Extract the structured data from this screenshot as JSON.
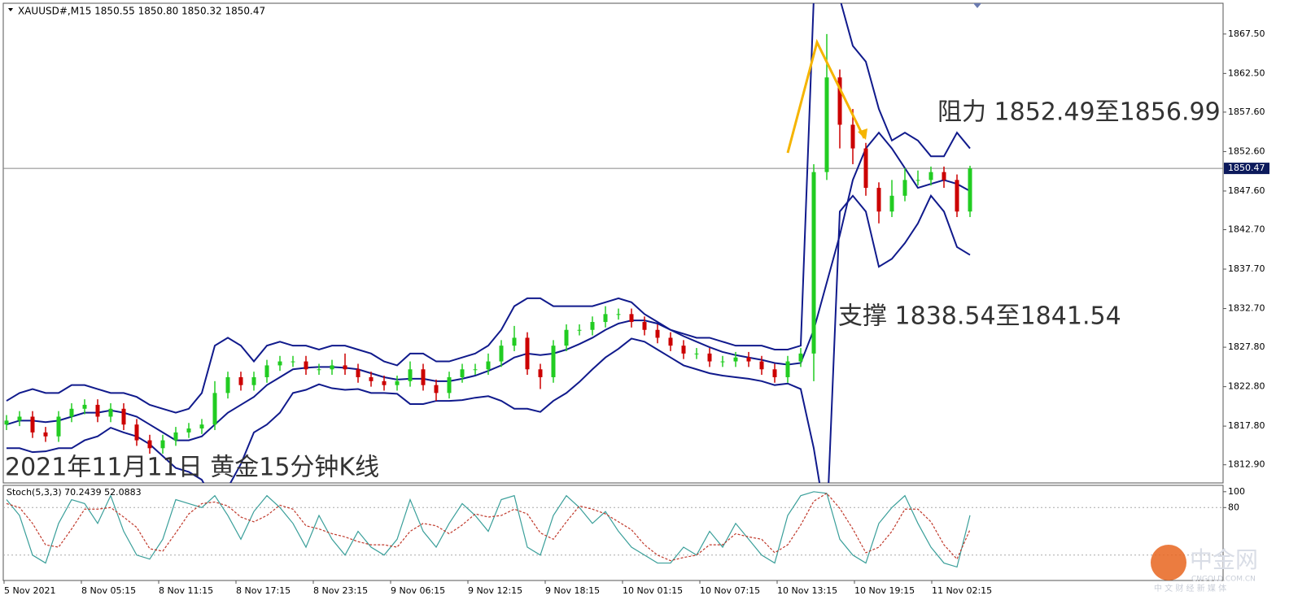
{
  "chart_data": [
    {
      "type": "candlestick",
      "title": "XAUUSD#,M15  1850.55 1850.80 1850.32 1850.47",
      "annotations": [
        "阻力 1852.49至1856.99",
        "支撑 1838.54至1841.54",
        "2021年11月11日 黄金15分钟K线"
      ],
      "x_labels": [
        "5 Nov 2021",
        "8 Nov 05:15",
        "8 Nov 11:15",
        "8 Nov 17:15",
        "8 Nov 23:15",
        "9 Nov 06:15",
        "9 Nov 12:15",
        "9 Nov 18:15",
        "10 Nov 01:15",
        "10 Nov 07:15",
        "10 Nov 13:15",
        "10 Nov 19:15",
        "11 Nov 02:15"
      ],
      "open": [
        1818,
        1818.5,
        1819,
        1817,
        1816.5,
        1819,
        1820,
        1820.5,
        1819,
        1820,
        1818,
        1816,
        1815,
        1816,
        1817,
        1817.5,
        1818,
        1822,
        1824,
        1823,
        1824,
        1825.5,
        1826,
        1826,
        1825,
        1825,
        1825.5,
        1825,
        1824,
        1823.5,
        1823,
        1823.5,
        1825,
        1823,
        1822,
        1824,
        1825,
        1825,
        1826,
        1828,
        1829,
        1825,
        1824,
        1828,
        1830,
        1830,
        1831,
        1832,
        1832,
        1831,
        1830,
        1829,
        1828,
        1827,
        1827,
        1826,
        1826,
        1826.5,
        1826,
        1825,
        1824,
        1826,
        1827,
        1850,
        1862,
        1856,
        1853,
        1848,
        1845,
        1847,
        1849,
        1849,
        1850,
        1849,
        1845
      ],
      "high": [
        1819.2,
        1819.7,
        1819.7,
        1817.7,
        1819.7,
        1820.7,
        1821.2,
        1821.2,
        1820.7,
        1820.7,
        1818.7,
        1816.7,
        1816.7,
        1817.7,
        1818.2,
        1818.7,
        1823.5,
        1824.7,
        1824.7,
        1824.7,
        1826.2,
        1826.7,
        1826.7,
        1826.7,
        1825.7,
        1826.2,
        1827,
        1825.7,
        1824.7,
        1824.2,
        1824.2,
        1826,
        1825.7,
        1823.7,
        1824.7,
        1825.7,
        1825.7,
        1827,
        1828.7,
        1830.5,
        1829.7,
        1825.7,
        1828.7,
        1830.7,
        1830.7,
        1831.7,
        1833,
        1832.7,
        1832.7,
        1831.7,
        1830.7,
        1829.7,
        1828.7,
        1827.7,
        1827.7,
        1826.7,
        1827.2,
        1827.2,
        1826.7,
        1825.7,
        1826.7,
        1827.7,
        1851,
        1867.5,
        1863,
        1858,
        1853.7,
        1848.7,
        1849,
        1850.5,
        1850.2,
        1850.7,
        1850.7,
        1849.7,
        1850.8
      ],
      "low": [
        1817.3,
        1817.8,
        1816.3,
        1815.8,
        1815.8,
        1818.3,
        1819.3,
        1818.3,
        1818.3,
        1817.3,
        1815.3,
        1814.3,
        1814.3,
        1815.3,
        1816.3,
        1816.8,
        1817.3,
        1821.3,
        1822.3,
        1822.3,
        1823.3,
        1824.8,
        1825.3,
        1824.3,
        1824.3,
        1824.3,
        1824.3,
        1823.3,
        1822.8,
        1822.3,
        1822.3,
        1822.8,
        1822.3,
        1821,
        1821.3,
        1823.3,
        1824.3,
        1824.3,
        1825.3,
        1827.3,
        1824.3,
        1822.5,
        1823.3,
        1827.3,
        1829.3,
        1829.3,
        1830.3,
        1831.3,
        1830.3,
        1829.3,
        1828.3,
        1827.3,
        1826.3,
        1826.3,
        1825.3,
        1825.3,
        1825.3,
        1825.3,
        1824.3,
        1823.3,
        1823.3,
        1825.3,
        1823.5,
        1849,
        1853,
        1851,
        1847,
        1843.5,
        1844.3,
        1846.3,
        1848.3,
        1848.3,
        1848,
        1844.3,
        1844.3
      ],
      "close": [
        1818.5,
        1819,
        1817,
        1816.5,
        1819,
        1820,
        1820.5,
        1819,
        1820,
        1818,
        1816,
        1815,
        1816,
        1817,
        1817.5,
        1818,
        1822,
        1824,
        1823,
        1824,
        1825.5,
        1826,
        1826,
        1825,
        1825,
        1825.5,
        1825,
        1824,
        1823.5,
        1823,
        1823.5,
        1825,
        1823,
        1822,
        1824,
        1825,
        1825,
        1826,
        1828,
        1829,
        1825,
        1824,
        1828,
        1830,
        1830,
        1831,
        1832,
        1832,
        1831,
        1830,
        1829,
        1828,
        1827,
        1827,
        1826,
        1826,
        1826.5,
        1826,
        1825,
        1824,
        1826,
        1827,
        1850,
        1862,
        1856,
        1853,
        1848,
        1845,
        1847,
        1849,
        1849,
        1850,
        1849,
        1845,
        1850.47
      ],
      "up_color": "#22cc22",
      "down_color": "#cc0000",
      "bands": {
        "color": "#101a8c",
        "upper": [
          1821,
          1822,
          1822.5,
          1822,
          1822,
          1823,
          1823,
          1822.5,
          1822,
          1822,
          1821.5,
          1820.5,
          1820,
          1819.5,
          1820,
          1822,
          1828,
          1829,
          1828,
          1826,
          1828,
          1828.5,
          1828,
          1828,
          1827.5,
          1828,
          1828,
          1827.5,
          1827,
          1826,
          1825.5,
          1827,
          1827,
          1826,
          1826,
          1826.5,
          1827,
          1828,
          1830,
          1833,
          1834,
          1834,
          1833,
          1833,
          1833,
          1833,
          1833.5,
          1834,
          1833.5,
          1832,
          1831,
          1830,
          1829.5,
          1829,
          1829,
          1828.5,
          1828,
          1828,
          1828,
          1827.5,
          1827.5,
          1828,
          1872,
          1872,
          1872,
          1866,
          1864,
          1858,
          1854,
          1855,
          1854,
          1852,
          1852,
          1855,
          1853
        ],
        "middle": [
          1818,
          1818.5,
          1818.5,
          1818.3,
          1818.5,
          1819,
          1819.5,
          1819.5,
          1819.8,
          1819.5,
          1819,
          1818,
          1817,
          1816,
          1816,
          1816.5,
          1818,
          1819.5,
          1820.5,
          1821.5,
          1823,
          1824,
          1825,
          1825.2,
          1825.3,
          1825.3,
          1825.2,
          1825,
          1824.5,
          1824,
          1823.7,
          1823.8,
          1823.8,
          1823.5,
          1823.5,
          1823.8,
          1824.2,
          1824.8,
          1825.5,
          1826.5,
          1827,
          1826.8,
          1827,
          1827.5,
          1828.2,
          1829,
          1830,
          1830.8,
          1831.2,
          1831.2,
          1830.8,
          1830,
          1829.2,
          1828.5,
          1827.8,
          1827.2,
          1826.8,
          1826.5,
          1826.2,
          1825.8,
          1825.6,
          1825.8,
          1830,
          1836,
          1842,
          1849,
          1853,
          1855,
          1853,
          1850.5,
          1848,
          1848.5,
          1849,
          1848.5,
          1847.6
        ],
        "lower": [
          1815,
          1815,
          1814.5,
          1814.6,
          1815,
          1815,
          1816,
          1816.5,
          1817.6,
          1817,
          1816.5,
          1815.5,
          1814,
          1812.5,
          1812,
          1811,
          1808,
          1810,
          1813,
          1817,
          1818,
          1819.5,
          1822,
          1822.4,
          1823.1,
          1822.6,
          1822.4,
          1822.5,
          1822,
          1822,
          1821.9,
          1820.6,
          1820.6,
          1821,
          1821,
          1821.1,
          1821.4,
          1821.6,
          1821,
          1820,
          1820,
          1819.6,
          1821,
          1822,
          1823.4,
          1825,
          1826.5,
          1827.6,
          1828.9,
          1828.5,
          1827.5,
          1826.5,
          1825.5,
          1825,
          1824.5,
          1824.2,
          1824,
          1823.8,
          1823.5,
          1823,
          1823.2,
          1822.5,
          1815,
          1805,
          1845,
          1847,
          1845,
          1838,
          1839,
          1841,
          1843.5,
          1847,
          1845,
          1840.5,
          1839.5
        ]
      },
      "current_price": 1850.47,
      "ylim": [
        1810.6,
        1871.4
      ],
      "yticks": [
        {
          "value": 1867.5,
          "label": "1867.50"
        },
        {
          "value": 1862.5,
          "label": "1862.50"
        },
        {
          "value": 1857.6,
          "label": "1857.60"
        },
        {
          "value": 1852.6,
          "label": "1852.60"
        },
        {
          "value": 1847.6,
          "label": "1847.60"
        },
        {
          "value": 1842.7,
          "label": "1842.70"
        },
        {
          "value": 1837.7,
          "label": "1837.70"
        },
        {
          "value": 1832.7,
          "label": "1832.70"
        },
        {
          "value": 1827.8,
          "label": "1827.80"
        },
        {
          "value": 1822.8,
          "label": "1822.80"
        },
        {
          "value": 1817.8,
          "label": "1817.80"
        },
        {
          "value": 1812.9,
          "label": "1812.90"
        }
      ]
    },
    {
      "type": "line",
      "title": "Stoch(5,3,3) 70.2439 52.0883",
      "series": [
        {
          "color": "#3a9f9a",
          "values": [
            90,
            70,
            20,
            10,
            60,
            90,
            85,
            60,
            95,
            50,
            20,
            15,
            40,
            90,
            85,
            80,
            95,
            70,
            40,
            75,
            95,
            80,
            60,
            30,
            70,
            40,
            20,
            50,
            30,
            20,
            40,
            90,
            50,
            30,
            60,
            85,
            70,
            50,
            90,
            95,
            30,
            20,
            70,
            95,
            80,
            60,
            75,
            50,
            30,
            20,
            10,
            10,
            30,
            20,
            50,
            30,
            60,
            40,
            20,
            10,
            70,
            95,
            100,
            98,
            40,
            20,
            10,
            60,
            80,
            95,
            60,
            30,
            10,
            5,
            70.2439
          ]
        },
        {
          "color": "#c0392b",
          "dashed": true,
          "values": [
            85,
            80,
            60,
            33,
            30,
            53,
            78,
            78,
            80,
            68,
            55,
            28,
            25,
            48,
            72,
            85,
            87,
            82,
            68,
            62,
            70,
            83,
            78,
            57,
            53,
            47,
            43,
            37,
            33,
            33,
            30,
            50,
            60,
            57,
            47,
            58,
            72,
            68,
            70,
            78,
            72,
            48,
            40,
            62,
            82,
            78,
            72,
            62,
            52,
            33,
            20,
            13,
            17,
            20,
            33,
            33,
            47,
            43,
            40,
            23,
            33,
            58,
            88,
            98,
            79,
            53,
            23,
            30,
            50,
            78,
            78,
            62,
            33,
            15,
            52.0883
          ]
        }
      ],
      "levels": [
        80,
        20
      ],
      "ylim": [
        -12,
        108
      ],
      "yticks": [
        100,
        80
      ]
    }
  ],
  "watermark": {
    "logo": "中金网",
    "url": "CNGOLD.COM.CN",
    "slogan": "中 文 财 经 新 媒 体"
  }
}
